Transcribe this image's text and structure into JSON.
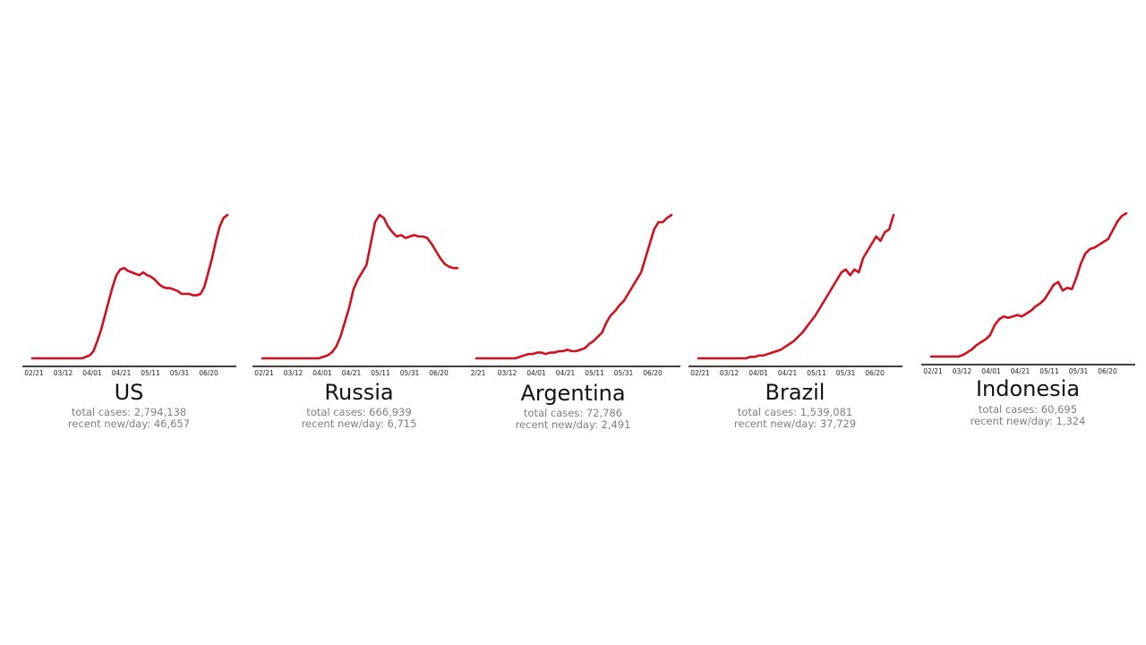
{
  "chart_data": [
    {
      "type": "line",
      "name": "US",
      "total_cases_label": "total cases: 2,794,138",
      "recent_label": "recent new/day: 46,657",
      "line_color": "#d0101c",
      "x_ticks": [
        "02/21",
        "03/12",
        "04/01",
        "04/21",
        "05/11",
        "05/31",
        "06/20"
      ],
      "xlim": [
        "2020-02-15",
        "2020-07-07"
      ],
      "grid": false,
      "values": [
        0,
        0,
        0,
        0,
        0,
        0,
        0,
        0,
        0,
        0,
        0,
        0,
        0,
        0,
        0.01,
        0.02,
        0.05,
        0.12,
        0.2,
        0.3,
        0.4,
        0.5,
        0.58,
        0.62,
        0.63,
        0.61,
        0.6,
        0.59,
        0.58,
        0.6,
        0.58,
        0.57,
        0.55,
        0.52,
        0.5,
        0.49,
        0.49,
        0.48,
        0.47,
        0.45,
        0.45,
        0.45,
        0.44,
        0.44,
        0.45,
        0.5,
        0.6,
        0.7,
        0.82,
        0.92,
        0.98,
        1.0
      ]
    },
    {
      "type": "line",
      "name": "Russia",
      "total_cases_label": "total cases: 666,939",
      "recent_label": "recent new/day: 6,715",
      "line_color": "#d0101c",
      "x_ticks": [
        "02/21",
        "03/12",
        "04/01",
        "04/21",
        "05/11",
        "05/31",
        "06/20"
      ],
      "xlim": [
        "2020-02-15",
        "2020-07-07"
      ],
      "grid": false,
      "values": [
        0,
        0,
        0,
        0,
        0,
        0,
        0,
        0,
        0,
        0,
        0,
        0,
        0,
        0,
        0.01,
        0.02,
        0.04,
        0.08,
        0.15,
        0.25,
        0.35,
        0.48,
        0.55,
        0.6,
        0.65,
        0.8,
        0.95,
        1.0,
        0.98,
        0.92,
        0.88,
        0.85,
        0.86,
        0.84,
        0.85,
        0.86,
        0.85,
        0.85,
        0.84,
        0.8,
        0.75,
        0.7,
        0.66,
        0.64,
        0.63,
        0.63
      ]
    },
    {
      "type": "line",
      "name": "Argentina",
      "total_cases_label": "total cases: 72,786",
      "recent_label": "recent new/day: 2,491",
      "line_color": "#d0101c",
      "x_ticks": [
        "2/21",
        "03/12",
        "04/01",
        "04/21",
        "05/11",
        "05/31",
        "06/20"
      ],
      "xlim": [
        "2020-02-20",
        "2020-07-07"
      ],
      "grid": false,
      "values": [
        0,
        0,
        0,
        0,
        0,
        0,
        0,
        0,
        0,
        0,
        0.01,
        0.02,
        0.03,
        0.03,
        0.04,
        0.04,
        0.03,
        0.04,
        0.04,
        0.05,
        0.05,
        0.06,
        0.05,
        0.05,
        0.06,
        0.07,
        0.1,
        0.12,
        0.15,
        0.18,
        0.25,
        0.3,
        0.33,
        0.37,
        0.4,
        0.45,
        0.5,
        0.55,
        0.6,
        0.7,
        0.8,
        0.9,
        0.95,
        0.95,
        0.98,
        1.0
      ]
    },
    {
      "type": "line",
      "name": "Brazil",
      "total_cases_label": "total cases: 1,539,081",
      "recent_label": "recent new/day: 37,729",
      "line_color": "#d0101c",
      "x_ticks": [
        "02/21",
        "03/12",
        "04/01",
        "04/21",
        "05/11",
        "05/31",
        "06/20"
      ],
      "xlim": [
        "2020-02-15",
        "2020-07-07"
      ],
      "grid": false,
      "values": [
        0,
        0,
        0,
        0,
        0,
        0,
        0,
        0,
        0,
        0,
        0,
        0,
        0.01,
        0.01,
        0.02,
        0.02,
        0.03,
        0.04,
        0.05,
        0.06,
        0.08,
        0.1,
        0.12,
        0.15,
        0.18,
        0.22,
        0.26,
        0.3,
        0.35,
        0.4,
        0.45,
        0.5,
        0.55,
        0.6,
        0.62,
        0.58,
        0.62,
        0.6,
        0.7,
        0.75,
        0.8,
        0.85,
        0.82,
        0.88,
        0.9,
        1.0
      ]
    },
    {
      "type": "line",
      "name": "Indonesia",
      "total_cases_label": "total cases: 60,695",
      "recent_label": "recent new/day: 1,324",
      "line_color": "#d0101c",
      "x_ticks": [
        "02/21",
        "03/12",
        "04/01",
        "04/21",
        "05/11",
        "05/31",
        "06/20"
      ],
      "xlim": [
        "2020-02-15",
        "2020-07-07"
      ],
      "grid": false,
      "values": [
        0,
        0,
        0,
        0,
        0,
        0,
        0,
        0.01,
        0.03,
        0.05,
        0.08,
        0.1,
        0.12,
        0.15,
        0.22,
        0.26,
        0.28,
        0.27,
        0.28,
        0.29,
        0.28,
        0.3,
        0.32,
        0.35,
        0.37,
        0.4,
        0.45,
        0.5,
        0.52,
        0.46,
        0.48,
        0.47,
        0.55,
        0.65,
        0.72,
        0.75,
        0.76,
        0.78,
        0.8,
        0.82,
        0.88,
        0.94,
        0.98,
        1.0
      ]
    }
  ]
}
